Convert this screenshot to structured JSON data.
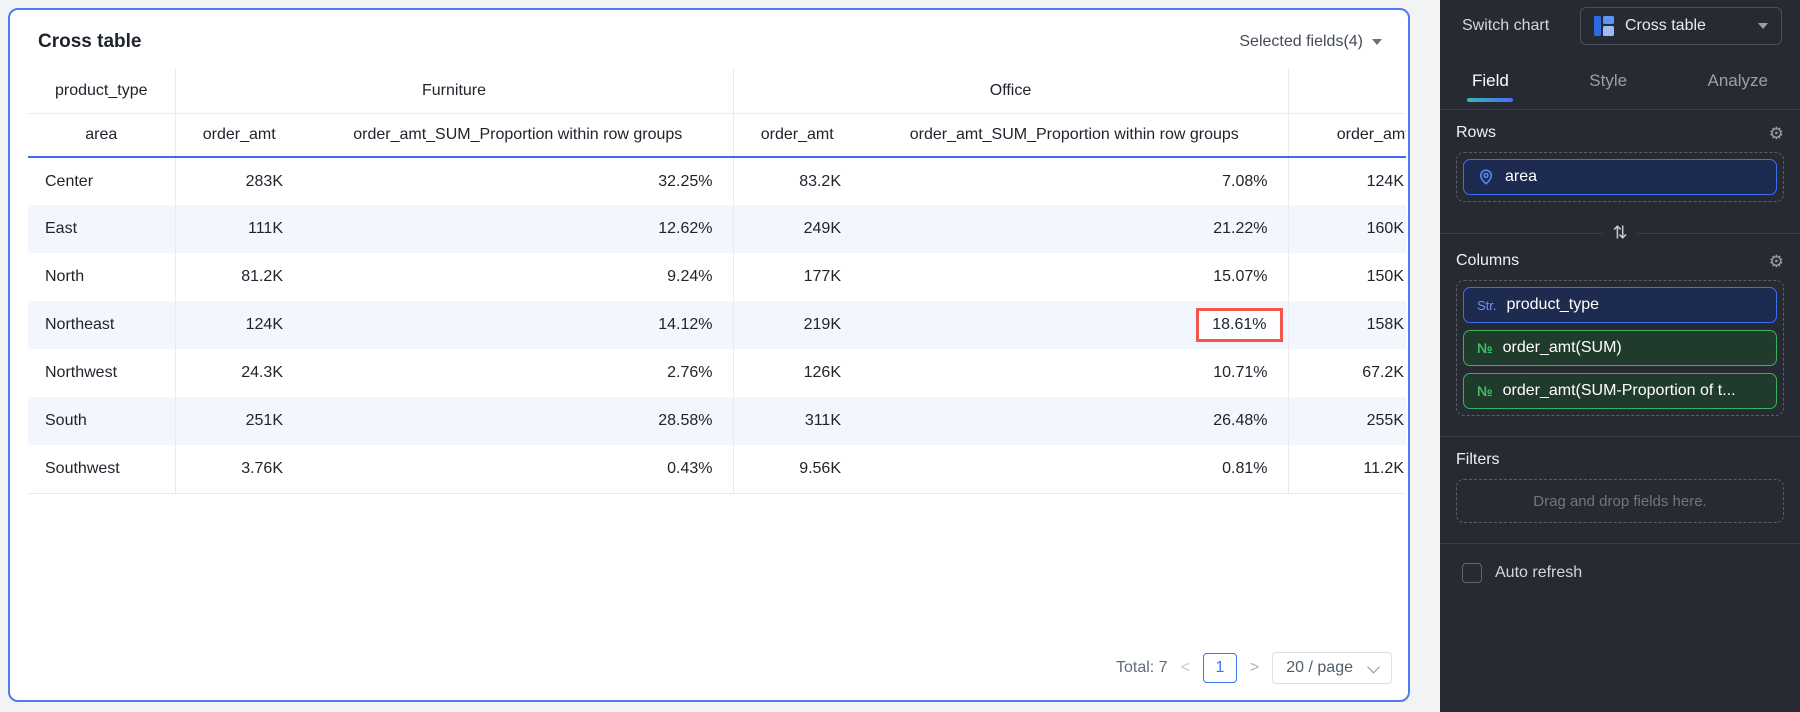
{
  "panel": {
    "title": "Cross table",
    "selected_fields_label": "Selected fields(4)"
  },
  "table": {
    "corner": {
      "top": "product_type",
      "bottom": "area"
    },
    "groups": [
      {
        "label": "Furniture",
        "metrics": [
          "order_amt",
          "order_amt_SUM_Proportion within row groups"
        ]
      },
      {
        "label": "Office",
        "metrics": [
          "order_amt",
          "order_amt_SUM_Proportion within row groups"
        ]
      },
      {
        "label": "",
        "metrics": [
          "order_amt"
        ]
      }
    ],
    "rows": [
      {
        "area": "Center",
        "values": [
          "283K",
          "32.25%",
          "83.2K",
          "7.08%",
          "124K"
        ]
      },
      {
        "area": "East",
        "values": [
          "111K",
          "12.62%",
          "249K",
          "21.22%",
          "160K"
        ]
      },
      {
        "area": "North",
        "values": [
          "81.2K",
          "9.24%",
          "177K",
          "15.07%",
          "150K"
        ]
      },
      {
        "area": "Northeast",
        "values": [
          "124K",
          "14.12%",
          "219K",
          "18.61%",
          "158K"
        ],
        "highlight_col": 3
      },
      {
        "area": "Northwest",
        "values": [
          "24.3K",
          "2.76%",
          "126K",
          "10.71%",
          "67.2K"
        ]
      },
      {
        "area": "South",
        "values": [
          "251K",
          "28.58%",
          "311K",
          "26.48%",
          "255K"
        ]
      },
      {
        "area": "Southwest",
        "values": [
          "3.76K",
          "0.43%",
          "9.56K",
          "0.81%",
          "11.2K"
        ]
      }
    ]
  },
  "pagination": {
    "total_label": "Total: 7",
    "prev_glyph": "<",
    "current_page": "1",
    "next_glyph": ">",
    "page_size": "20 / page"
  },
  "sidebar": {
    "switch_chart_label": "Switch chart",
    "chart_type": "Cross table",
    "tabs": [
      {
        "label": "Field",
        "active": true
      },
      {
        "label": "Style",
        "active": false
      },
      {
        "label": "Analyze",
        "active": false
      }
    ],
    "rows_section": {
      "title": "Rows",
      "fields": [
        {
          "label": "area",
          "type": "geo"
        }
      ]
    },
    "columns_section": {
      "title": "Columns",
      "fields": [
        {
          "label": "product_type",
          "badge": "Str.",
          "type": "string"
        },
        {
          "label": "order_amt(SUM)",
          "badge": "№",
          "type": "number"
        },
        {
          "label": "order_amt(SUM-Proportion of t...",
          "badge": "№",
          "type": "number"
        }
      ]
    },
    "filters_section": {
      "title": "Filters",
      "placeholder": "Drag and drop fields here."
    },
    "auto_refresh_label": "Auto refresh",
    "auto_refresh_checked": false
  },
  "icons": {
    "gear": "⚙",
    "swap": "⇅",
    "caret": "▾"
  },
  "colors": {
    "panel_border": "#4d7cf0",
    "header_underline": "#3f6cf0",
    "row_stripe": "#f2f6fd",
    "highlight_red": "#f4554c",
    "pill_blue_border": "#3f6cf0",
    "pill_green_border": "#37b35f",
    "tab_underline_gradient": [
      "#36b8b0",
      "#4a6cf3"
    ],
    "sidebar_bg": "#262a33"
  }
}
